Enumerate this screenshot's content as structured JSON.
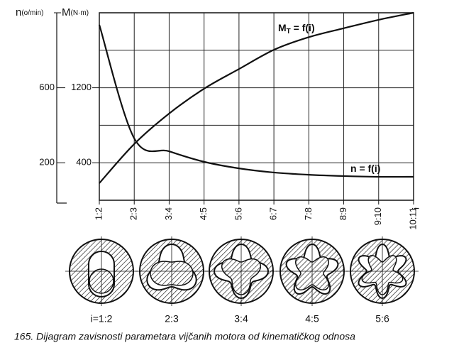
{
  "chart_data": {
    "type": "line",
    "y_label": {
      "symbol": "M",
      "unit": "(N·m)"
    },
    "y2_label": {
      "symbol": "n",
      "unit": "(o/min)"
    },
    "x_label": "i",
    "categories": [
      "1:2",
      "2:3",
      "3:4",
      "4:5",
      "5:6",
      "6:7",
      "7:8",
      "8:9",
      "9:10",
      "10:11"
    ],
    "series": [
      {
        "name": {
          "main": "M",
          "sub": "T",
          "rest": " = f(i)"
        },
        "color": "#111111",
        "axis": "y",
        "values": [
          182,
          600,
          925,
          1190,
          1400,
          1605,
          1740,
          1835,
          1925,
          2000
        ]
      },
      {
        "name": {
          "main": "n",
          "sub": "",
          "rest": " = f(i)"
        },
        "color": "#111111",
        "axis": "y2",
        "values": [
          936,
          330,
          261,
          205,
          170,
          148,
          136,
          129,
          125,
          125
        ]
      }
    ],
    "ylim": [
      0,
      2000
    ],
    "yticks": [
      400,
      {
        "value": 800,
        "label": null
      },
      1200,
      {
        "value": 1600,
        "label": null
      }
    ],
    "y2lim": [
      0,
      1000
    ],
    "y2ticks": [
      200,
      600
    ],
    "grid": true,
    "cross_sections": [
      "i=1:2",
      "2:3",
      "3:4",
      "4:5",
      "5:6"
    ],
    "caption": "165. Dijagram zavisnosti parametara vijčanih motora od kinematičkog odnosa"
  }
}
